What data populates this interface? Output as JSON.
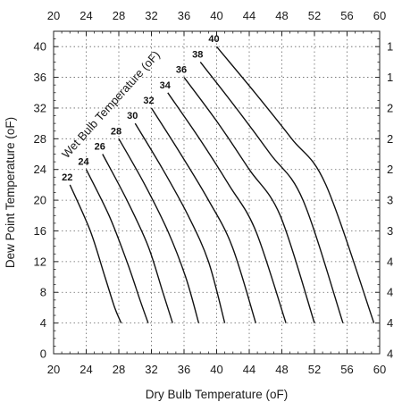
{
  "chart_data": {
    "type": "line",
    "xlabel": "Dry Bulb Temperature (oF)",
    "ylabel": "Dew Point Temperature (oF)",
    "xlim": [
      20,
      60
    ],
    "ylim": [
      0,
      42
    ],
    "x_ticks": [
      "20",
      "24",
      "28",
      "32",
      "36",
      "40",
      "44",
      "48",
      "52",
      "56",
      "60"
    ],
    "y_ticks": [
      "0",
      "4",
      "8",
      "12",
      "16",
      "20",
      "24",
      "28",
      "32",
      "36",
      "40"
    ],
    "top_ticks": [
      "20",
      "24",
      "28",
      "32",
      "36",
      "40",
      "44",
      "48",
      "52",
      "56",
      "60"
    ],
    "right_ticks": [
      "4",
      "4",
      "4",
      "4",
      "3",
      "3",
      "2",
      "2",
      "2",
      "1",
      "1"
    ],
    "grid": true,
    "legend": "none",
    "curves_title": "Wet Bulb Temperature (oF)",
    "series": [
      {
        "label": "22",
        "x": [
          22.0,
          24.5,
          26.3,
          27.5,
          28.3
        ],
        "y": [
          22,
          16,
          10,
          6,
          4
        ]
      },
      {
        "label": "24",
        "x": [
          24.0,
          26.8,
          29.0,
          30.6,
          31.6
        ],
        "y": [
          24,
          18,
          12,
          7,
          4
        ]
      },
      {
        "label": "26",
        "x": [
          26.0,
          29.0,
          31.6,
          33.4,
          34.6
        ],
        "y": [
          26,
          20,
          14,
          8,
          4
        ]
      },
      {
        "label": "28",
        "x": [
          28.0,
          31.2,
          34.0,
          36.2,
          37.8
        ],
        "y": [
          28,
          22,
          16,
          10,
          4
        ]
      },
      {
        "label": "30",
        "x": [
          30.0,
          33.4,
          36.5,
          39.0,
          41.0
        ],
        "y": [
          30,
          24,
          18,
          12,
          4
        ]
      },
      {
        "label": "32",
        "x": [
          32.0,
          35.6,
          39.0,
          41.9,
          44.8
        ],
        "y": [
          32,
          26,
          20,
          14,
          4
        ]
      },
      {
        "label": "34",
        "x": [
          34.0,
          37.9,
          41.5,
          44.8,
          48.5
        ],
        "y": [
          34,
          28,
          22,
          16,
          4
        ]
      },
      {
        "label": "36",
        "x": [
          36.0,
          40.2,
          44.0,
          47.8,
          52.0
        ],
        "y": [
          36,
          30,
          24,
          18,
          4
        ]
      },
      {
        "label": "38",
        "x": [
          38.0,
          42.4,
          46.6,
          50.6,
          55.5
        ],
        "y": [
          38,
          32,
          26,
          20,
          4
        ]
      },
      {
        "label": "40",
        "x": [
          40.0,
          44.7,
          49.2,
          53.4,
          59.3
        ],
        "y": [
          40,
          34,
          28,
          22,
          4
        ]
      }
    ]
  }
}
